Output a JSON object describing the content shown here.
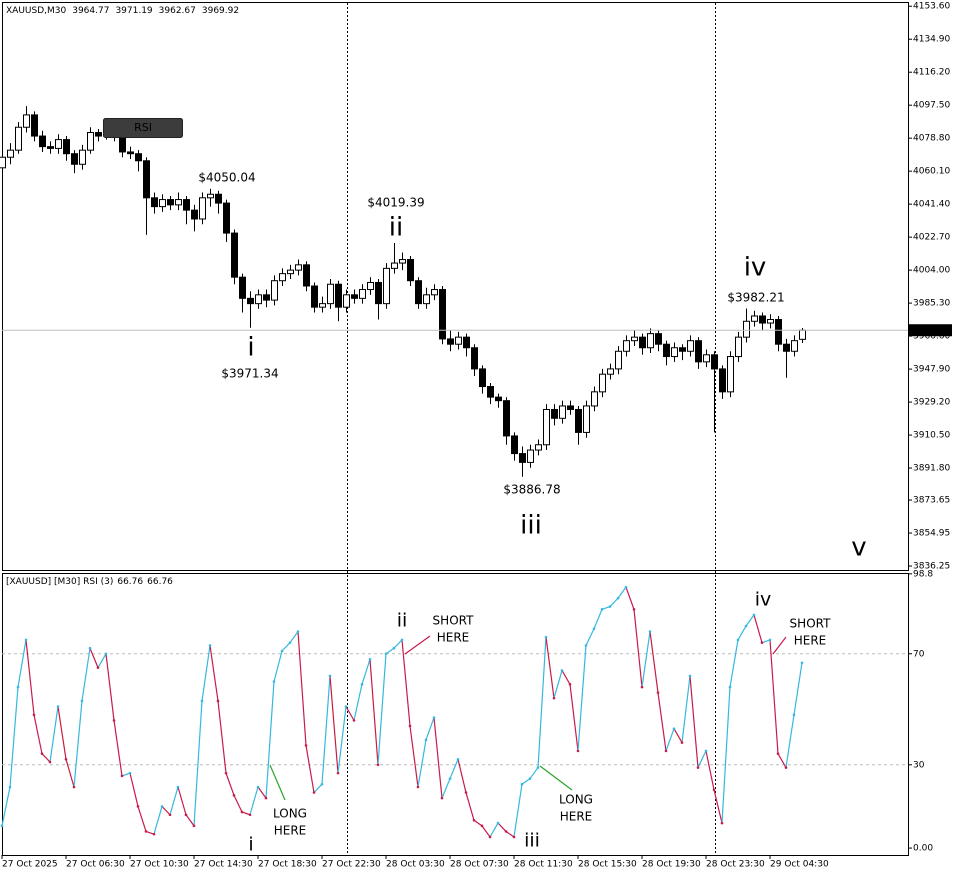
{
  "chart_data": [
    {
      "type": "candlestick",
      "title": "XAUUSD,M30",
      "object_label": "RSI",
      "categories": [
        "27 Oct 2025",
        null,
        null,
        null,
        null,
        null,
        null,
        null,
        "27 Oct 06:30",
        null,
        null,
        null,
        null,
        null,
        null,
        null,
        "27 Oct 10:30",
        null,
        null,
        null,
        null,
        null,
        null,
        null,
        "27 Oct 14:30",
        null,
        null,
        null,
        null,
        null,
        null,
        null,
        "27 Oct 18:30",
        null,
        null,
        null,
        null,
        null,
        null,
        null,
        "27 Oct 22:30",
        null,
        null,
        null,
        null,
        null,
        null,
        null,
        "28 Oct 03:30",
        null,
        null,
        null,
        null,
        null,
        null,
        null,
        "28 Oct 07:30",
        null,
        null,
        null,
        null,
        null,
        null,
        null,
        "28 Oct 11:30",
        null,
        null,
        null,
        null,
        null,
        null,
        null,
        "28 Oct 15:30",
        null,
        null,
        null,
        null,
        null,
        null,
        null,
        "28 Oct 19:30",
        null,
        null,
        null,
        null,
        null,
        null,
        null,
        "28 Oct 23:30",
        null,
        null,
        null,
        null,
        null,
        null,
        null,
        "29 Oct 04:30",
        null,
        null,
        null,
        null
      ],
      "open": [
        4062,
        4068,
        4072,
        4085,
        4092,
        4080,
        4074,
        4073,
        4078,
        4070,
        4064,
        4072,
        4082,
        4080,
        4082,
        4080,
        4071,
        4070,
        4066,
        4045,
        4040,
        4044,
        4041,
        4044,
        4038,
        4033,
        4045,
        4047,
        4042,
        4025,
        4000,
        3988,
        3985,
        3990,
        3987,
        3998,
        4002,
        4004,
        4007,
        3995,
        3983,
        3985,
        3996,
        3983,
        3990,
        3988,
        3993,
        3997,
        3985,
        4005,
        4008,
        4010,
        3998,
        3985,
        3990,
        3993,
        3965,
        3962,
        3966,
        3960,
        3948,
        3938,
        3932,
        3930,
        3910,
        3900,
        3895,
        3902,
        3905,
        3925,
        3920,
        3927,
        3925,
        3912,
        3927,
        3935,
        3945,
        3948,
        3958,
        3964,
        3966,
        3960,
        3968,
        3962,
        3955,
        3960,
        3958,
        3964,
        3952,
        3956,
        3948,
        3935,
        3955,
        3966,
        3975,
        3978,
        3974,
        3976,
        3962,
        3958,
        3964.77
      ],
      "high": [
        4071,
        4076,
        4088,
        4097,
        4094,
        4083,
        4077,
        4081,
        4080,
        4072,
        4075,
        4085,
        4084,
        4085,
        4084,
        4082,
        4074,
        4072,
        4068,
        4048,
        4047,
        4046,
        4048,
        4046,
        4041,
        4048,
        4050.04,
        4049,
        4044,
        4027,
        4002,
        3992,
        3993,
        3993,
        4001,
        4005,
        4007,
        4010,
        4009,
        3997,
        3989,
        3999,
        3998,
        3993,
        3993,
        3996,
        4000,
        3999,
        4008,
        4019.39,
        4014,
        4012,
        4000,
        3994,
        3996,
        3995,
        3970,
        3969,
        3968,
        3962,
        3950,
        3940,
        3934,
        3932,
        3912,
        3904,
        3905,
        3908,
        3928,
        3928,
        3930,
        3930,
        3927,
        3930,
        3938,
        3948,
        3951,
        3961,
        3967,
        3970,
        3968,
        3971,
        3970,
        3964,
        3963,
        3962,
        3967,
        3966,
        3959,
        3958,
        3950,
        3958,
        3969,
        3982.21,
        3981,
        3980,
        3979,
        3978,
        3965,
        3967,
        3971.19
      ],
      "low": [
        4058,
        4064,
        4070,
        4082,
        4077,
        4071,
        4070,
        4070,
        4066,
        4059,
        4061,
        4070,
        4077,
        4078,
        4077,
        4068,
        4067,
        4060,
        4024,
        4036,
        4037,
        4038,
        4038,
        4030,
        4026,
        4030,
        4040,
        4036,
        4020,
        3996,
        3980,
        3971.34,
        3982,
        3983,
        3984,
        3995,
        3999,
        4001,
        3992,
        3980,
        3980,
        3982,
        3975,
        3980,
        3985,
        3985,
        3990,
        3976,
        3982,
        4002,
        4004,
        3995,
        3982,
        3982,
        3987,
        3962,
        3958,
        3959,
        3955,
        3944,
        3934,
        3928,
        3926,
        3905,
        3896,
        3886.78,
        3892,
        3899,
        3902,
        3916,
        3917,
        3922,
        3905,
        3909,
        3924,
        3932,
        3942,
        3945,
        3955,
        3961,
        3956,
        3957,
        3958,
        3950,
        3952,
        3953,
        3955,
        3948,
        3949,
        3912,
        3931,
        3932,
        3952,
        3963,
        3972,
        3970,
        3971,
        3958,
        3943,
        3955,
        3962.67
      ],
      "close": [
        4068,
        4072,
        4085,
        4092,
        4080,
        4074,
        4073,
        4078,
        4070,
        4064,
        4072,
        4082,
        4080,
        4082,
        4080,
        4071,
        4070,
        4066,
        4045,
        4040,
        4044,
        4041,
        4044,
        4038,
        4033,
        4045,
        4047,
        4042,
        4025,
        4000,
        3988,
        3985,
        3990,
        3987,
        3998,
        4002,
        4004,
        4007,
        3995,
        3983,
        3985,
        3996,
        3983,
        3990,
        3988,
        3993,
        3997,
        3985,
        4005,
        4008,
        4010,
        3998,
        3985,
        3990,
        3993,
        3965,
        3962,
        3966,
        3960,
        3948,
        3938,
        3932,
        3930,
        3910,
        3900,
        3895,
        3902,
        3905,
        3925,
        3920,
        3927,
        3925,
        3912,
        3927,
        3935,
        3945,
        3948,
        3958,
        3964,
        3966,
        3960,
        3968,
        3962,
        3955,
        3960,
        3958,
        3964,
        3952,
        3956,
        3948,
        3935,
        3955,
        3966,
        3975,
        3978,
        3974,
        3976,
        3962,
        3958,
        3964,
        3969.92
      ],
      "up_color": "#ffffff",
      "down_color": "#000000",
      "wick_color": "#000000",
      "ylim": [
        3834,
        4156
      ],
      "yticks": [
        {
          "value": 4153.6,
          "label": "4153.60"
        },
        {
          "value": 4134.9,
          "label": "4134.90"
        },
        {
          "value": 4116.2,
          "label": "4116.20"
        },
        {
          "value": 4097.5,
          "label": "4097.50"
        },
        {
          "value": 4078.8,
          "label": "4078.80"
        },
        {
          "value": 4060.1,
          "label": "4060.10"
        },
        {
          "value": 4041.4,
          "label": "4041.40"
        },
        {
          "value": 4022.7,
          "label": "4022.70"
        },
        {
          "value": 4004,
          "label": "4004.00"
        },
        {
          "value": 3985.3,
          "label": "3985.30"
        },
        {
          "value": 3966.6,
          "label": "3966.60"
        },
        {
          "value": 3947.9,
          "label": "3947.90"
        },
        {
          "value": 3929.2,
          "label": "3929.20"
        },
        {
          "value": 3910.5,
          "label": "3910.50"
        },
        {
          "value": 3891.8,
          "label": "3891.80"
        },
        {
          "value": 3873.65,
          "label": "3873.65"
        },
        {
          "value": 3854.95,
          "label": "3854.95"
        },
        {
          "value": 3836.25,
          "label": "3836.25"
        }
      ],
      "grid": false,
      "wave_labels": [
        "i",
        "ii",
        "iii",
        "iv",
        "v"
      ],
      "price_labels": [
        "$4050.04",
        "$3971.34",
        "$4019.39",
        "$3886.78",
        "$3982.21"
      ]
    },
    {
      "type": "line",
      "title": "[XAUUSD] [M30] RSI (3)",
      "values": [
        8,
        22,
        58,
        75,
        48,
        34,
        31,
        51,
        32,
        22,
        53,
        72,
        65,
        70,
        46,
        26,
        27,
        15,
        6,
        5,
        15,
        12,
        22,
        12,
        8,
        53,
        73,
        53,
        27,
        19,
        13,
        12,
        22,
        18,
        60,
        71,
        74,
        78,
        37,
        20,
        23,
        62,
        27,
        51,
        46,
        59,
        68,
        30,
        70,
        72,
        75,
        44,
        22,
        39,
        47,
        18,
        25,
        32,
        20,
        10,
        8,
        4,
        9,
        6,
        4,
        23,
        25,
        29,
        76,
        54,
        64,
        59,
        35,
        73,
        79,
        86,
        87,
        90,
        94,
        86,
        58,
        78,
        56,
        35,
        43,
        38,
        62,
        29,
        35,
        21,
        9,
        58,
        75,
        80,
        84,
        74,
        75,
        34,
        29,
        48,
        66.76
      ],
      "up_color": "#35b8df",
      "down_color": "#c81b4a",
      "ylim": [
        -2.5,
        99.1
      ],
      "yticks": [
        98.8,
        70,
        30,
        {
          "value": 0,
          "label": "0.00"
        }
      ],
      "grid": true,
      "wave_labels": [
        "i",
        "ii",
        "iii",
        "iv"
      ],
      "notes": [
        [
          "LONG",
          "HERE"
        ],
        [
          "SHORT",
          "HERE"
        ],
        [
          "LONG",
          "HERE"
        ],
        [
          "SHORT",
          "HERE"
        ]
      ]
    }
  ]
}
